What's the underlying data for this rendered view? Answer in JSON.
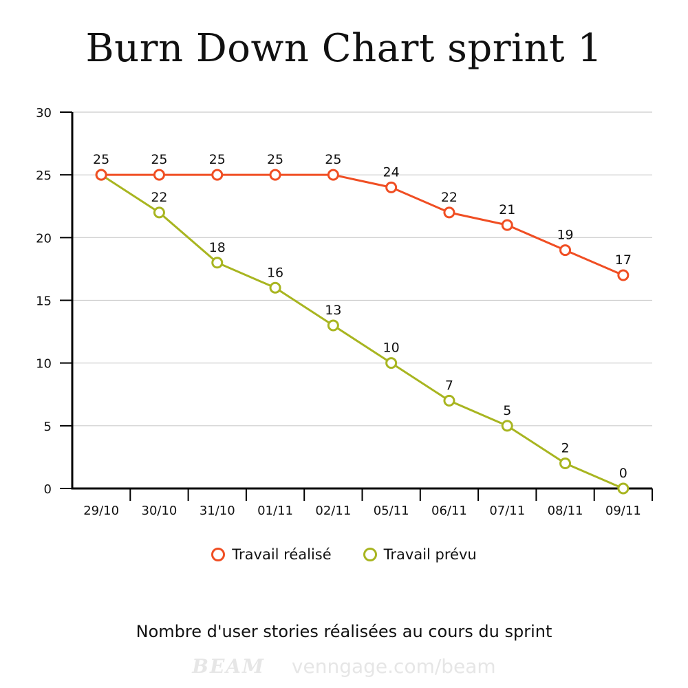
{
  "title": "Burn Down Chart sprint 1",
  "subtitle": "Nombre d'user stories réalisées au cours du sprint",
  "watermark": {
    "brand": "BEAM",
    "url": "venngage.com/beam"
  },
  "chart_data": {
    "type": "line",
    "categories": [
      "29/10",
      "30/10",
      "31/10",
      "01/11",
      "02/11",
      "05/11",
      "06/11",
      "07/11",
      "08/11",
      "09/11"
    ],
    "series": [
      {
        "name": "Travail réalisé",
        "color": "#f04e23",
        "values": [
          25,
          25,
          25,
          25,
          25,
          24,
          22,
          21,
          19,
          17
        ]
      },
      {
        "name": "Travail prévu",
        "color": "#a8b520",
        "values": [
          25,
          22,
          18,
          16,
          13,
          10,
          7,
          5,
          2,
          0
        ]
      }
    ],
    "ylim": [
      0,
      30
    ],
    "yticks": [
      0,
      5,
      10,
      15,
      20,
      25,
      30
    ],
    "grid": true,
    "legend_position": "bottom"
  }
}
